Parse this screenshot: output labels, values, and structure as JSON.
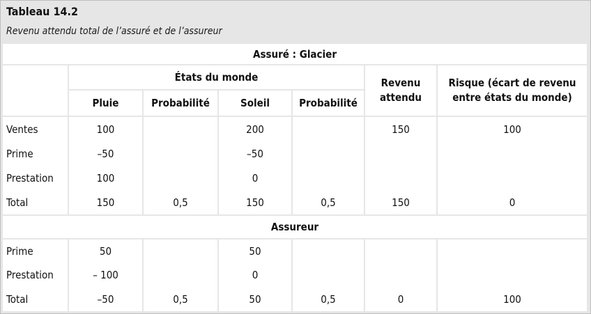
{
  "title": "Tableau 14.2",
  "subtitle": "Revenu attendu total de l’assuré et de l’assureur",
  "section_insured": "Assuré : Glacier",
  "section_insurer": "Assureur",
  "header": {
    "states": "États du monde",
    "rain": "Pluie",
    "prob1": "Probabilité",
    "sun": "Soleil",
    "prob2": "Probabilité",
    "expected_l1": "Revenu",
    "expected_l2": "attendu",
    "risk_l1": "Risque (écart de revenu",
    "risk_l2": "entre états du monde)"
  },
  "insured_rows": [
    {
      "label": "Ventes",
      "rain": "100",
      "p1": "",
      "sun": "200",
      "p2": "",
      "expected": "150",
      "risk": "100"
    },
    {
      "label": "Prime",
      "rain": "–50",
      "p1": "",
      "sun": "–50",
      "p2": "",
      "expected": "",
      "risk": ""
    },
    {
      "label": "Prestation",
      "rain": "100",
      "p1": "",
      "sun": "0",
      "p2": "",
      "expected": "",
      "risk": ""
    },
    {
      "label": "Total",
      "rain": "150",
      "p1": "0,5",
      "sun": "150",
      "p2": "0,5",
      "expected": "150",
      "risk": "0"
    }
  ],
  "insurer_rows": [
    {
      "label": "Prime",
      "rain": "50",
      "p1": "",
      "sun": "50",
      "p2": "",
      "expected": "",
      "risk": ""
    },
    {
      "label": "Prestation",
      "rain": "– 100",
      "p1": "",
      "sun": "0",
      "p2": "",
      "expected": "",
      "risk": ""
    },
    {
      "label": "Total",
      "rain": "–50",
      "p1": "0,5",
      "sun": "50",
      "p2": "0,5",
      "expected": "0",
      "risk": "100"
    }
  ]
}
